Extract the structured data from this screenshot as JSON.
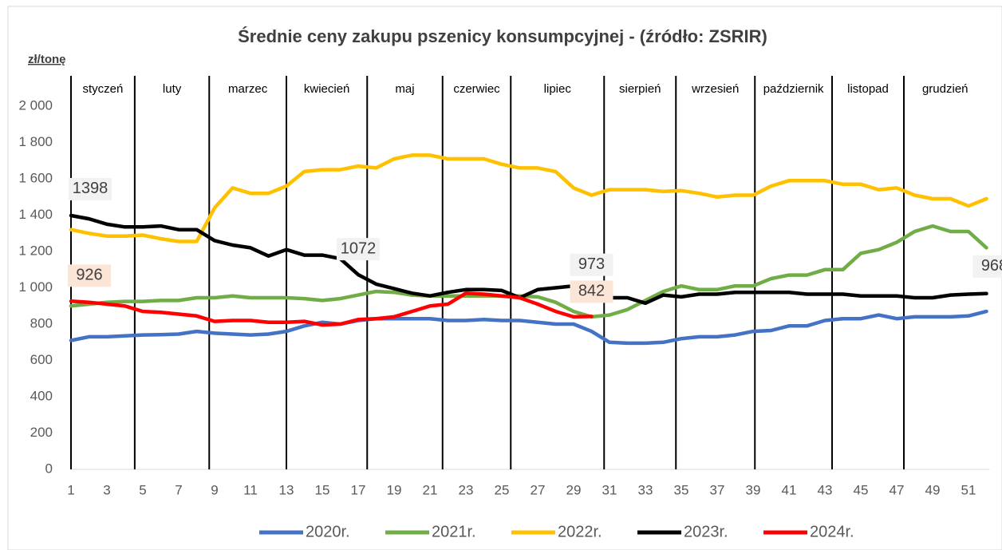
{
  "chart_data": {
    "type": "line",
    "title": "Średnie ceny zakupu pszenicy konsumpcyjnej - (źródło: ZSRIR)",
    "y_label": "zł/tonę",
    "x": [
      1,
      2,
      3,
      4,
      5,
      6,
      7,
      8,
      9,
      10,
      11,
      12,
      13,
      14,
      15,
      16,
      17,
      18,
      19,
      20,
      21,
      22,
      23,
      24,
      25,
      26,
      27,
      28,
      29,
      30,
      31,
      32,
      33,
      34,
      35,
      36,
      37,
      38,
      39,
      40,
      41,
      42,
      43,
      44,
      45,
      46,
      47,
      48,
      49,
      50,
      51,
      52
    ],
    "xlim": [
      1,
      52
    ],
    "xticks": [
      1,
      3,
      5,
      7,
      9,
      11,
      13,
      15,
      17,
      19,
      21,
      23,
      25,
      27,
      29,
      31,
      33,
      35,
      37,
      39,
      41,
      43,
      45,
      47,
      49,
      51
    ],
    "ylim": [
      0,
      2000
    ],
    "yticks": [
      0,
      200,
      400,
      600,
      800,
      {
        "value": 1000,
        "label": "1 000"
      },
      {
        "value": 1200,
        "label": "1 200"
      },
      {
        "value": 1400,
        "label": "1 400"
      },
      {
        "value": 1600,
        "label": "1 600"
      },
      {
        "value": 1800,
        "label": "1 800"
      },
      {
        "value": 2000,
        "label": "2 000"
      }
    ],
    "grid": false,
    "months": [
      "styczeń",
      "luty",
      "marzec",
      "kwiecień",
      "maj",
      "czerwiec",
      "lipiec",
      "sierpień",
      "wrzesień",
      "październik",
      "listopad",
      "grudzień"
    ],
    "month_bounds": [
      1,
      4.55,
      8.7,
      13,
      17.5,
      21.7,
      25.5,
      30.7,
      34.7,
      39.1,
      43.4,
      47.4
    ],
    "legend": "bottom",
    "series": [
      {
        "name": "2020r.",
        "color": "#4472c4",
        "values": [
          710,
          730,
          730,
          735,
          740,
          742,
          745,
          760,
          750,
          745,
          740,
          745,
          760,
          790,
          810,
          800,
          820,
          830,
          830,
          830,
          830,
          820,
          820,
          825,
          820,
          820,
          810,
          800,
          800,
          760,
          700,
          695,
          695,
          700,
          720,
          730,
          730,
          740,
          760,
          765,
          790,
          790,
          820,
          830,
          830,
          850,
          830,
          840,
          840,
          840,
          845,
          870
        ]
      },
      {
        "name": "2021r.",
        "color": "#70ad47",
        "values": [
          900,
          910,
          920,
          925,
          925,
          930,
          930,
          945,
          945,
          955,
          945,
          945,
          945,
          940,
          930,
          940,
          960,
          980,
          975,
          960,
          955,
          955,
          955,
          955,
          955,
          955,
          950,
          920,
          870,
          840,
          850,
          880,
          930,
          980,
          1010,
          990,
          990,
          1010,
          1010,
          1050,
          1070,
          1070,
          1100,
          1100,
          1190,
          1210,
          1250,
          1310,
          1340,
          1310,
          1310,
          1220
        ]
      },
      {
        "name": "2022r.",
        "color": "#ffc000",
        "values": [
          1320,
          1300,
          1285,
          1285,
          1290,
          1270,
          1255,
          1255,
          1440,
          1550,
          1520,
          1520,
          1560,
          1640,
          1650,
          1650,
          1670,
          1660,
          1710,
          1730,
          1730,
          1710,
          1710,
          1710,
          1680,
          1660,
          1660,
          1640,
          1550,
          1510,
          1540,
          1540,
          1540,
          1530,
          1535,
          1520,
          1500,
          1510,
          1510,
          1560,
          1590,
          1590,
          1590,
          1570,
          1570,
          1540,
          1550,
          1510,
          1490,
          1490,
          1450,
          1490
        ]
      },
      {
        "name": "2023r.",
        "color": "#000000",
        "values": [
          1398,
          1380,
          1350,
          1335,
          1335,
          1340,
          1320,
          1320,
          1260,
          1235,
          1220,
          1175,
          1210,
          1180,
          1180,
          1160,
          1072,
          1020,
          995,
          970,
          955,
          975,
          990,
          990,
          985,
          945,
          990,
          1000,
          1010,
          973,
          945,
          945,
          915,
          960,
          950,
          965,
          965,
          975,
          975,
          975,
          975,
          965,
          965,
          965,
          955,
          955,
          955,
          945,
          945,
          960,
          965,
          968
        ]
      },
      {
        "name": "2024r.",
        "color": "#ff0000",
        "values": [
          926,
          920,
          910,
          900,
          870,
          865,
          855,
          845,
          815,
          820,
          820,
          810,
          810,
          815,
          795,
          800,
          825,
          830,
          840,
          870,
          900,
          910,
          970,
          965,
          955,
          945,
          910,
          870,
          840,
          842,
          null,
          null,
          null,
          null,
          null,
          null,
          null,
          null,
          null,
          null,
          null,
          null,
          null,
          null,
          null,
          null,
          null,
          null,
          null,
          null,
          null,
          null
        ]
      }
    ],
    "data_labels": [
      [
        3,
        0
      ],
      [
        4,
        0
      ],
      [
        3,
        16
      ],
      [
        3,
        29
      ],
      [
        4,
        29
      ],
      [
        3,
        51
      ]
    ]
  }
}
